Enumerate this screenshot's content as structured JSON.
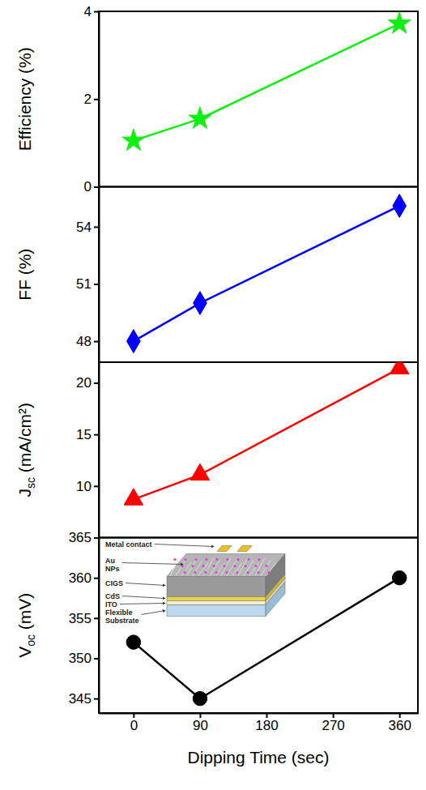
{
  "chart_data": [
    {
      "type": "line",
      "x": [
        0,
        90,
        360
      ],
      "values": [
        1.05,
        1.55,
        3.72
      ],
      "color": "#11ee11",
      "marker": "star",
      "ylabel": "Efficiency (%)",
      "ylim": [
        0,
        4
      ],
      "yticks": [
        0,
        2,
        4
      ],
      "xlim": [
        -47,
        385
      ],
      "tick_labels": "y"
    },
    {
      "type": "line",
      "x": [
        0,
        90,
        360
      ],
      "values": [
        48.0,
        50.0,
        55.1
      ],
      "color": "#0000ff",
      "marker": "diamond",
      "ylabel": "FF (%)",
      "ylim": [
        46.9,
        56.1
      ],
      "yticks": [
        48,
        51,
        54
      ],
      "xlim": [
        -47,
        385
      ],
      "tick_labels": "y"
    },
    {
      "type": "line",
      "x": [
        0,
        90,
        360
      ],
      "values": [
        8.7,
        11.1,
        21.4
      ],
      "color": "#ff0000",
      "marker": "triangle",
      "ylabel": "Jsc (mA/cm²)",
      "ylim": [
        5,
        22
      ],
      "yticks": [
        10,
        15,
        20
      ],
      "xlim": [
        -47,
        385
      ],
      "tick_labels": "y"
    },
    {
      "type": "line",
      "x": [
        0,
        90,
        360
      ],
      "values": [
        352,
        345,
        360
      ],
      "color": "#000000",
      "marker": "circle",
      "ylabel": "Voc (mV)",
      "ylim": [
        343.2,
        365
      ],
      "yticks": [
        345,
        350,
        355,
        360,
        365
      ],
      "xlabel": "Dipping Time (sec)",
      "xlim": [
        -47,
        385
      ],
      "xticks": [
        0,
        90,
        180,
        270,
        360
      ],
      "annotations": [
        "Metal contact",
        "Au NPs",
        "CIGS",
        "CdS",
        "ITO",
        "Flexible Substrate"
      ]
    }
  ]
}
